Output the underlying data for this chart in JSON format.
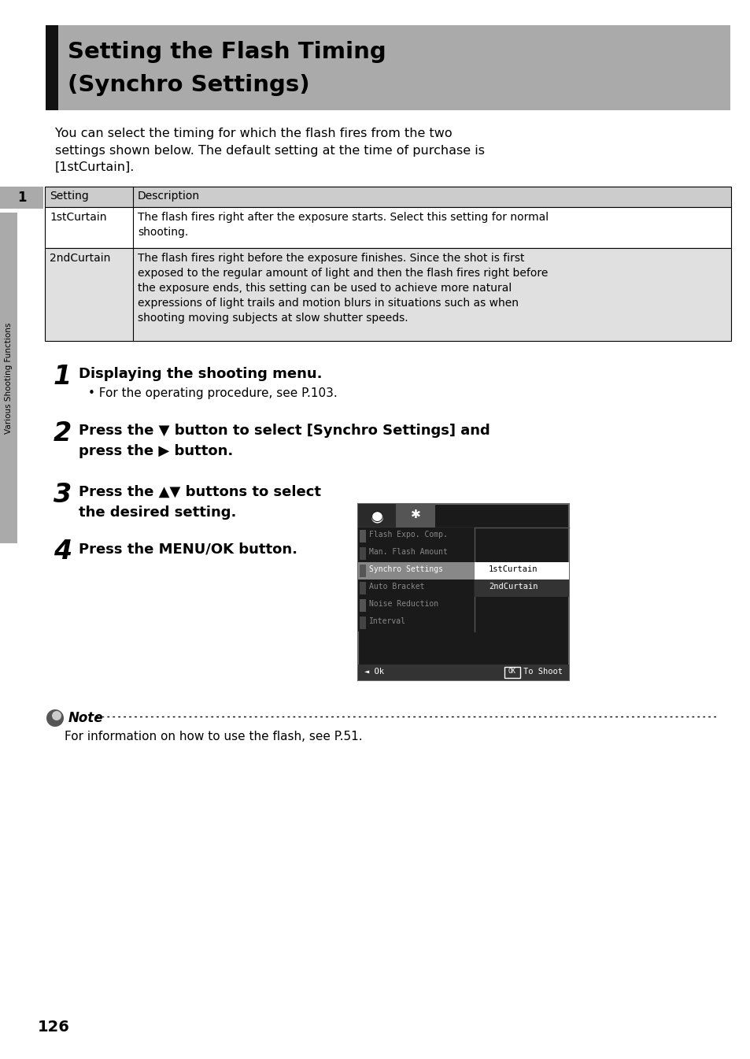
{
  "title_line1": "Setting the Flash Timing",
  "title_line2": "(Synchro Settings)",
  "title_bg": "#aaaaaa",
  "title_bar_color": "#111111",
  "page_bg": "#ffffff",
  "body_text_intro": "You can select the timing for which the flash fires from the two\nsettings shown below. The default setting at the time of purchase is\n[1stCurtain].",
  "table_header": [
    "Setting",
    "Description"
  ],
  "table_rows": [
    [
      "1stCurtain",
      "The flash fires right after the exposure starts. Select this setting for normal\nshooting."
    ],
    [
      "2ndCurtain",
      "The flash fires right before the exposure finishes. Since the shot is first\nexposed to the regular amount of light and then the flash fires right before\nthe exposure ends, this setting can be used to achieve more natural\nexpressions of light trails and motion blurs in situations such as when\nshooting moving subjects at slow shutter speeds."
    ]
  ],
  "table_header_bg": "#cccccc",
  "table_row1_bg": "#ffffff",
  "table_row2_bg": "#e0e0e0",
  "step1_num": "1",
  "step1_text": "Displaying the shooting menu.",
  "step1_sub": "For the operating procedure, see P.103.",
  "step2_num": "2",
  "step2_text": "Press the ▼ button to select [Synchro Settings] and\npress the ▶ button.",
  "step3_num": "3",
  "step3_text": "Press the ▲▼ buttons to select\nthe desired setting.",
  "step4_num": "4",
  "step4_text": "Press the MENU/OK button.",
  "note_text": "For information on how to use the flash, see P.51.",
  "side_tab_text": "Various Shooting Functions",
  "side_tab_num": "1",
  "page_num": "126",
  "screen_menu_items": [
    "Flash Expo. Comp.",
    "Man. Flash Amount",
    "Synchro Settings",
    "Auto Bracket",
    "Noise Reduction",
    "Interval"
  ],
  "screen_selected_item": "Synchro Settings",
  "screen_options": [
    "1stCurtain",
    "2ndCurtain"
  ],
  "screen_bottom_left": "◄ Ok",
  "screen_bottom_right": "To Shoot"
}
